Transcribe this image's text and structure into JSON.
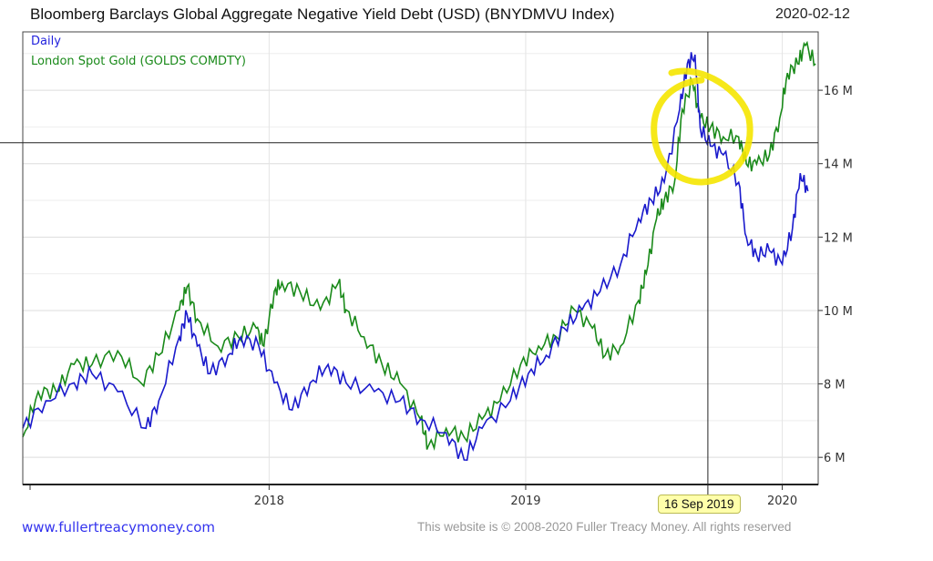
{
  "header": {
    "title": "Bloomberg Barclays Global Aggregate Negative Yield Debt (USD) (BNYDMVU Index)",
    "date": "2020-02-12"
  },
  "footer": {
    "site": "www.fullertreacymoney.com",
    "copyright": "This website is © 2008-2020 Fuller Treacy Money. All rights reserved",
    "tooltip": "16 Sep 2019"
  },
  "colors": {
    "debt": "#1a1acc",
    "gold": "#1a8a1a",
    "annotation": "#f5e600"
  },
  "chart_data": {
    "type": "line",
    "title": "Bloomberg Barclays Global Aggregate Negative Yield Debt (USD) (BNYDMVU Index)",
    "legend": [
      "Daily",
      "London Spot Gold (GOLDS COMDTY)"
    ],
    "legend_position": "top-left",
    "xlim": [
      2017.04,
      2020.14
    ],
    "ylim": [
      5.26,
      17.59
    ],
    "yticks": [
      {
        "v": 6,
        "label": "6 M"
      },
      {
        "v": 8,
        "label": "8 M"
      },
      {
        "v": 10,
        "label": "10 M"
      },
      {
        "v": 12,
        "label": "12 M"
      },
      {
        "v": 14,
        "label": "14 M"
      },
      {
        "v": 16,
        "label": "16 M"
      }
    ],
    "xticks": [
      {
        "v": 2018,
        "label": "2018"
      },
      {
        "v": 2019,
        "label": "2019"
      },
      {
        "v": 2020,
        "label": "2020"
      }
    ],
    "crosshair": {
      "x": 2019.71,
      "y": 14.57
    },
    "series": [
      {
        "name": "Negative Yield Debt",
        "points": [
          [
            2017.04,
            6.79
          ],
          [
            2017.13,
            7.54
          ],
          [
            2017.24,
            8.03
          ],
          [
            2017.31,
            8.28
          ],
          [
            2017.41,
            7.79
          ],
          [
            2017.52,
            6.79
          ],
          [
            2017.57,
            7.54
          ],
          [
            2017.65,
            9.28
          ],
          [
            2017.68,
            9.9
          ],
          [
            2017.72,
            9.03
          ],
          [
            2017.77,
            8.28
          ],
          [
            2017.84,
            8.78
          ],
          [
            2017.89,
            9.28
          ],
          [
            2017.96,
            9.03
          ],
          [
            2018.02,
            8.03
          ],
          [
            2018.09,
            7.29
          ],
          [
            2018.16,
            8.03
          ],
          [
            2018.23,
            8.53
          ],
          [
            2018.3,
            8.03
          ],
          [
            2018.41,
            7.79
          ],
          [
            2018.51,
            7.54
          ],
          [
            2018.59,
            7.04
          ],
          [
            2018.69,
            6.67
          ],
          [
            2018.76,
            5.93
          ],
          [
            2018.83,
            6.79
          ],
          [
            2018.94,
            7.54
          ],
          [
            2019.01,
            8.28
          ],
          [
            2019.08,
            8.78
          ],
          [
            2019.15,
            9.52
          ],
          [
            2019.22,
            10.02
          ],
          [
            2019.29,
            10.52
          ],
          [
            2019.37,
            11.26
          ],
          [
            2019.44,
            12.5
          ],
          [
            2019.49,
            13.0
          ],
          [
            2019.54,
            13.49
          ],
          [
            2019.6,
            15.48
          ],
          [
            2019.63,
            16.72
          ],
          [
            2019.66,
            16.97
          ],
          [
            2019.68,
            14.98
          ],
          [
            2019.72,
            14.48
          ],
          [
            2019.77,
            14.24
          ],
          [
            2019.83,
            13.49
          ],
          [
            2019.86,
            12.0
          ],
          [
            2019.9,
            11.51
          ],
          [
            2019.95,
            11.63
          ],
          [
            2020.0,
            11.26
          ],
          [
            2020.04,
            12.25
          ],
          [
            2020.07,
            13.74
          ],
          [
            2020.1,
            13.25
          ]
        ]
      },
      {
        "name": "London Spot Gold (GOLDS COMDTY)",
        "points": [
          [
            2017.04,
            6.55
          ],
          [
            2017.1,
            7.79
          ],
          [
            2017.17,
            7.79
          ],
          [
            2017.24,
            8.53
          ],
          [
            2017.31,
            8.53
          ],
          [
            2017.41,
            8.9
          ],
          [
            2017.5,
            8.03
          ],
          [
            2017.57,
            8.78
          ],
          [
            2017.65,
            10.02
          ],
          [
            2017.68,
            10.64
          ],
          [
            2017.72,
            9.77
          ],
          [
            2017.8,
            9.03
          ],
          [
            2017.88,
            9.28
          ],
          [
            2017.95,
            9.52
          ],
          [
            2017.98,
            9.03
          ],
          [
            2018.02,
            10.52
          ],
          [
            2018.05,
            10.76
          ],
          [
            2018.12,
            10.52
          ],
          [
            2018.2,
            10.02
          ],
          [
            2018.27,
            10.76
          ],
          [
            2018.3,
            10.02
          ],
          [
            2018.37,
            9.28
          ],
          [
            2018.44,
            8.53
          ],
          [
            2018.51,
            8.03
          ],
          [
            2018.59,
            7.04
          ],
          [
            2018.62,
            6.3
          ],
          [
            2018.69,
            6.79
          ],
          [
            2018.76,
            6.55
          ],
          [
            2018.83,
            7.04
          ],
          [
            2018.9,
            7.54
          ],
          [
            2018.98,
            8.53
          ],
          [
            2019.05,
            9.03
          ],
          [
            2019.12,
            9.28
          ],
          [
            2019.19,
            10.02
          ],
          [
            2019.26,
            9.52
          ],
          [
            2019.31,
            8.78
          ],
          [
            2019.37,
            9.03
          ],
          [
            2019.44,
            10.27
          ],
          [
            2019.47,
            11.01
          ],
          [
            2019.51,
            12.5
          ],
          [
            2019.54,
            13.0
          ],
          [
            2019.58,
            13.49
          ],
          [
            2019.61,
            15.48
          ],
          [
            2019.65,
            16.22
          ],
          [
            2019.68,
            15.23
          ],
          [
            2019.72,
            14.98
          ],
          [
            2019.77,
            14.73
          ],
          [
            2019.83,
            14.73
          ],
          [
            2019.86,
            13.99
          ],
          [
            2019.9,
            13.99
          ],
          [
            2019.95,
            14.24
          ],
          [
            2019.99,
            15.23
          ],
          [
            2020.02,
            16.47
          ],
          [
            2020.06,
            16.72
          ],
          [
            2020.09,
            17.22
          ],
          [
            2020.13,
            16.72
          ]
        ]
      }
    ]
  }
}
